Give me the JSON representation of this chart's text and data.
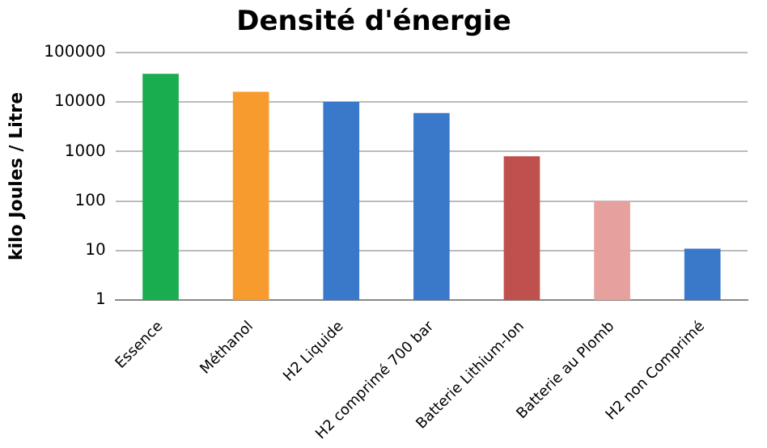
{
  "chart_data": {
    "type": "bar",
    "title": "Densité d'énergie",
    "ylabel": "kilo Joules / Litre",
    "categories": [
      "Essence",
      "Méthanol",
      "H2 Liquide",
      "H2 comprimé 700 bar",
      "Batterie Lithium-Ion",
      "Batterie au Plomb",
      "H2 non Comprimé"
    ],
    "values": [
      37000,
      16000,
      10000,
      6000,
      800,
      100,
      11
    ],
    "colors": [
      "#1aad4f",
      "#f79b2e",
      "#3a78c9",
      "#3a78c9",
      "#c0504d",
      "#e6a09e",
      "#3a78c9"
    ],
    "log": true,
    "ylim": [
      1,
      100000
    ],
    "yticks": [
      1,
      10,
      100,
      1000,
      10000,
      100000
    ],
    "grid": "y",
    "legend": false
  }
}
